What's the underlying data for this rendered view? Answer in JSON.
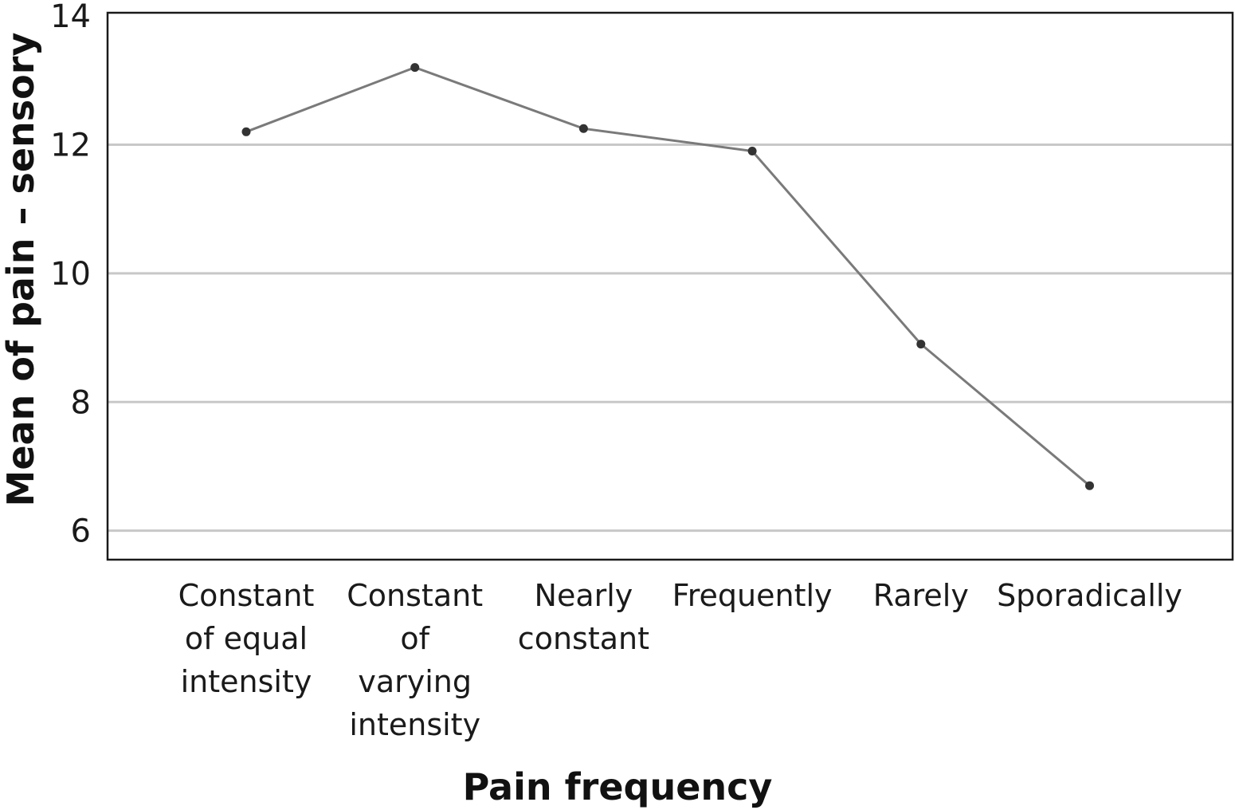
{
  "chart_data": {
    "type": "line",
    "title": "",
    "xlabel": "Pain frequency",
    "ylabel": "Mean of pain – sensory",
    "categories": [
      [
        "Constant",
        "of equal",
        "intensity"
      ],
      [
        "Constant",
        "of",
        "varying",
        "intensity"
      ],
      [
        "Nearly",
        "constant"
      ],
      [
        "Frequently"
      ],
      [
        "Rarely"
      ],
      [
        "Sporadically"
      ]
    ],
    "values": [
      12.2,
      13.2,
      12.25,
      11.9,
      8.9,
      6.7
    ],
    "ylim": [
      5.55,
      14.05
    ],
    "yticks": [
      "6",
      "8",
      "10",
      "12",
      "14"
    ],
    "grid": true,
    "colors": {
      "line": "#7a7a7a",
      "point": "#333333",
      "grid": "#c8c8c8",
      "frame": "#1a1a1a"
    }
  }
}
